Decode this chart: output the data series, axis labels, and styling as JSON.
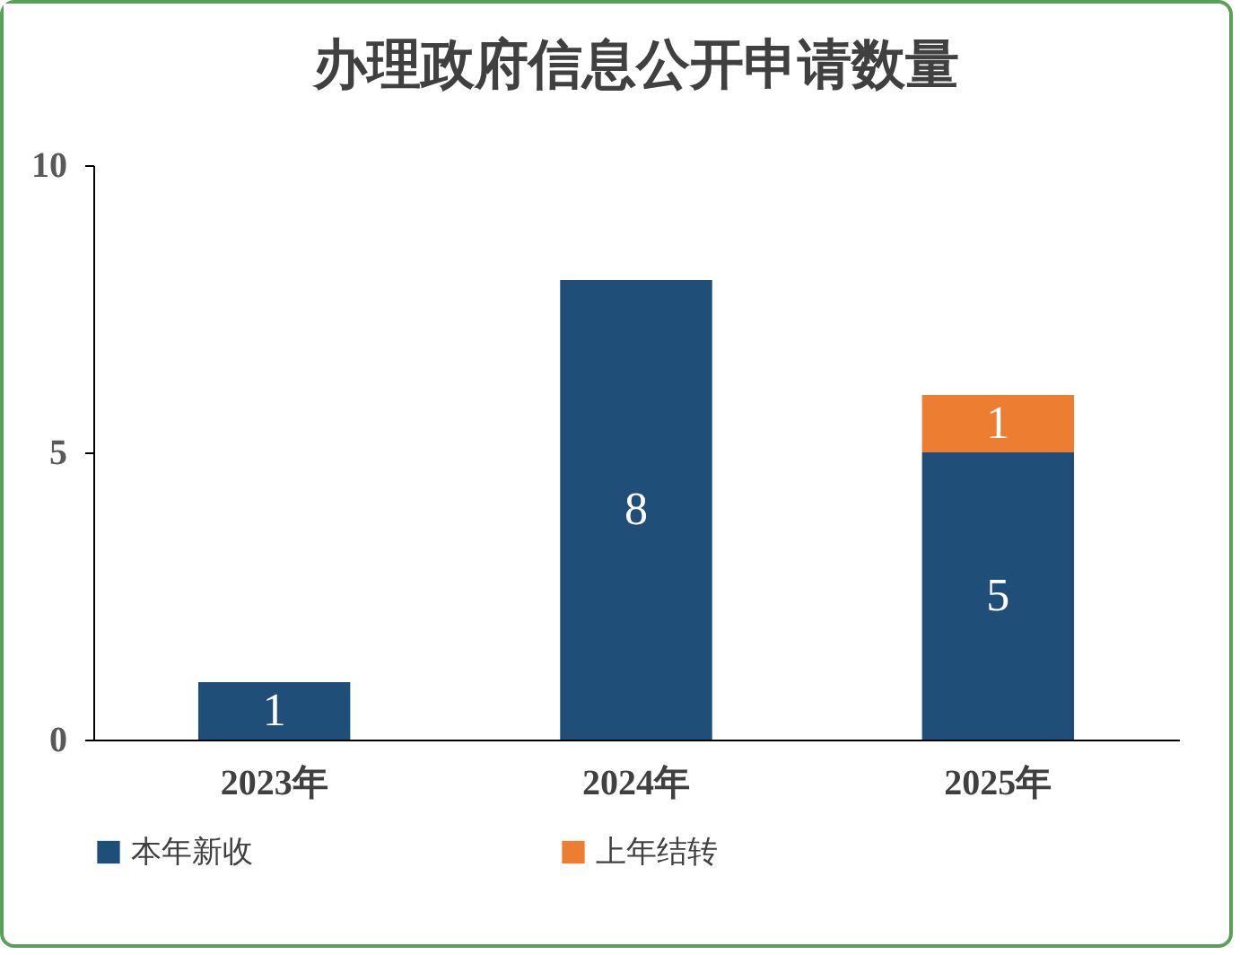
{
  "chart_data": {
    "type": "bar",
    "title": "办理政府信息公开申请数量",
    "categories": [
      "2023年",
      "2024年",
      "2025年"
    ],
    "stacked": true,
    "series": [
      {
        "name": "本年新收",
        "color": "#1f4e79",
        "values": [
          1,
          8,
          5
        ]
      },
      {
        "name": "上年结转",
        "color": "#ed7d31",
        "values": [
          null,
          null,
          1
        ]
      }
    ],
    "ylim": [
      0,
      10
    ],
    "yticks": [
      0,
      5,
      10
    ],
    "grid": false,
    "legend": "bottom",
    "data_labels": true
  }
}
